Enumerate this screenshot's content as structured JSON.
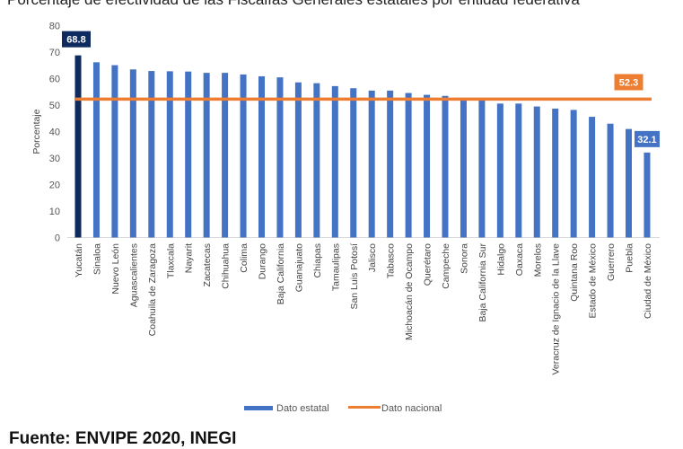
{
  "title": "Porcentaje de efectividad de las Fiscalías Generales estatales por entidad federativa",
  "source": "Fuente: ENVIPE 2020, INEGI",
  "chart_data": {
    "type": "bar",
    "title": "Porcentaje de efectividad de las Fiscalías Generales estatales por entidad federativa",
    "xlabel": "",
    "ylabel": "Porcentaje",
    "ylim": [
      0,
      80
    ],
    "yticks": [
      0,
      10,
      20,
      30,
      40,
      50,
      60,
      70,
      80
    ],
    "grid": false,
    "legend": "bottom",
    "categories": [
      "Yucatán",
      "Sinaloa",
      "Nuevo León",
      "Aguascalientes",
      "Coahuila de Zaragoza",
      "Tlaxcala",
      "Nayarit",
      "Zacatecas",
      "Chihuahua",
      "Colima",
      "Durango",
      "Baja California",
      "Guanajuato",
      "Chiapas",
      "Tamaulipas",
      "San Luis Potosí",
      "Jalisco",
      "Tabasco",
      "Michoacán de Ocampo",
      "Querétaro",
      "Campeche",
      "Sonora",
      "Baja California Sur",
      "Hidalgo",
      "Oaxaca",
      "Morelos",
      "Veracruz de Ignacio de la Llave",
      "Quintana Roo",
      "Estado de México",
      "Guerrero",
      "Puebla",
      "Ciudad de México"
    ],
    "series": [
      {
        "name": "Dato estatal",
        "type": "bar",
        "color": "#4472c4",
        "highlight_color": "#0e2a5e",
        "values": [
          68.8,
          66.2,
          65.1,
          63.5,
          62.9,
          62.8,
          62.7,
          62.2,
          62.2,
          61.6,
          60.9,
          60.5,
          58.6,
          58.3,
          57.2,
          56.4,
          55.5,
          55.5,
          54.6,
          53.9,
          53.5,
          52.0,
          51.9,
          50.6,
          50.6,
          49.5,
          48.7,
          48.2,
          45.6,
          43.0,
          41.0,
          32.1
        ]
      },
      {
        "name": "Dato nacional",
        "type": "line",
        "color": "#ed7d31",
        "value": 52.3
      }
    ],
    "data_labels": [
      {
        "category": "Yucatán",
        "text": "68.8",
        "color": "#0e2a5e"
      },
      {
        "category": "Ciudad de México",
        "text": "32.1",
        "color": "#4472c4"
      },
      {
        "series": "Dato nacional",
        "text": "52.3",
        "color": "#ed7d31"
      }
    ]
  }
}
